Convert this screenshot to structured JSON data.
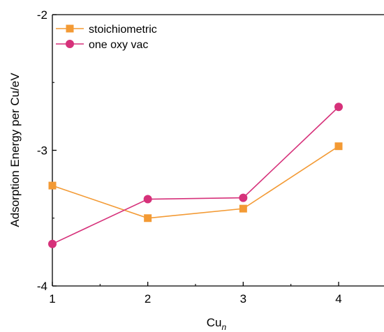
{
  "chart_data": {
    "type": "line",
    "xlabel": "Cu",
    "xlabel_subscript": "n",
    "ylabel": "Adsorption Energy per Cu/eV",
    "x": [
      1,
      2,
      3,
      4
    ],
    "xlim": [
      1,
      4.45
    ],
    "ylim": [
      -4,
      -2
    ],
    "xticks": [
      "1",
      "2",
      "3",
      "4"
    ],
    "yticks": [
      "-2",
      "-3",
      "-4"
    ],
    "ytick_values": [
      -2,
      -3,
      -4
    ],
    "grid": false,
    "legend_position": "top-left",
    "series": [
      {
        "name": "stoichiometric",
        "marker": "square",
        "color": "#f39a34",
        "values": [
          -3.26,
          -3.5,
          -3.43,
          -2.97
        ]
      },
      {
        "name": "one oxy vac",
        "marker": "circle",
        "color": "#d6317a",
        "values": [
          -3.69,
          -3.36,
          -3.35,
          -2.68
        ]
      }
    ]
  }
}
